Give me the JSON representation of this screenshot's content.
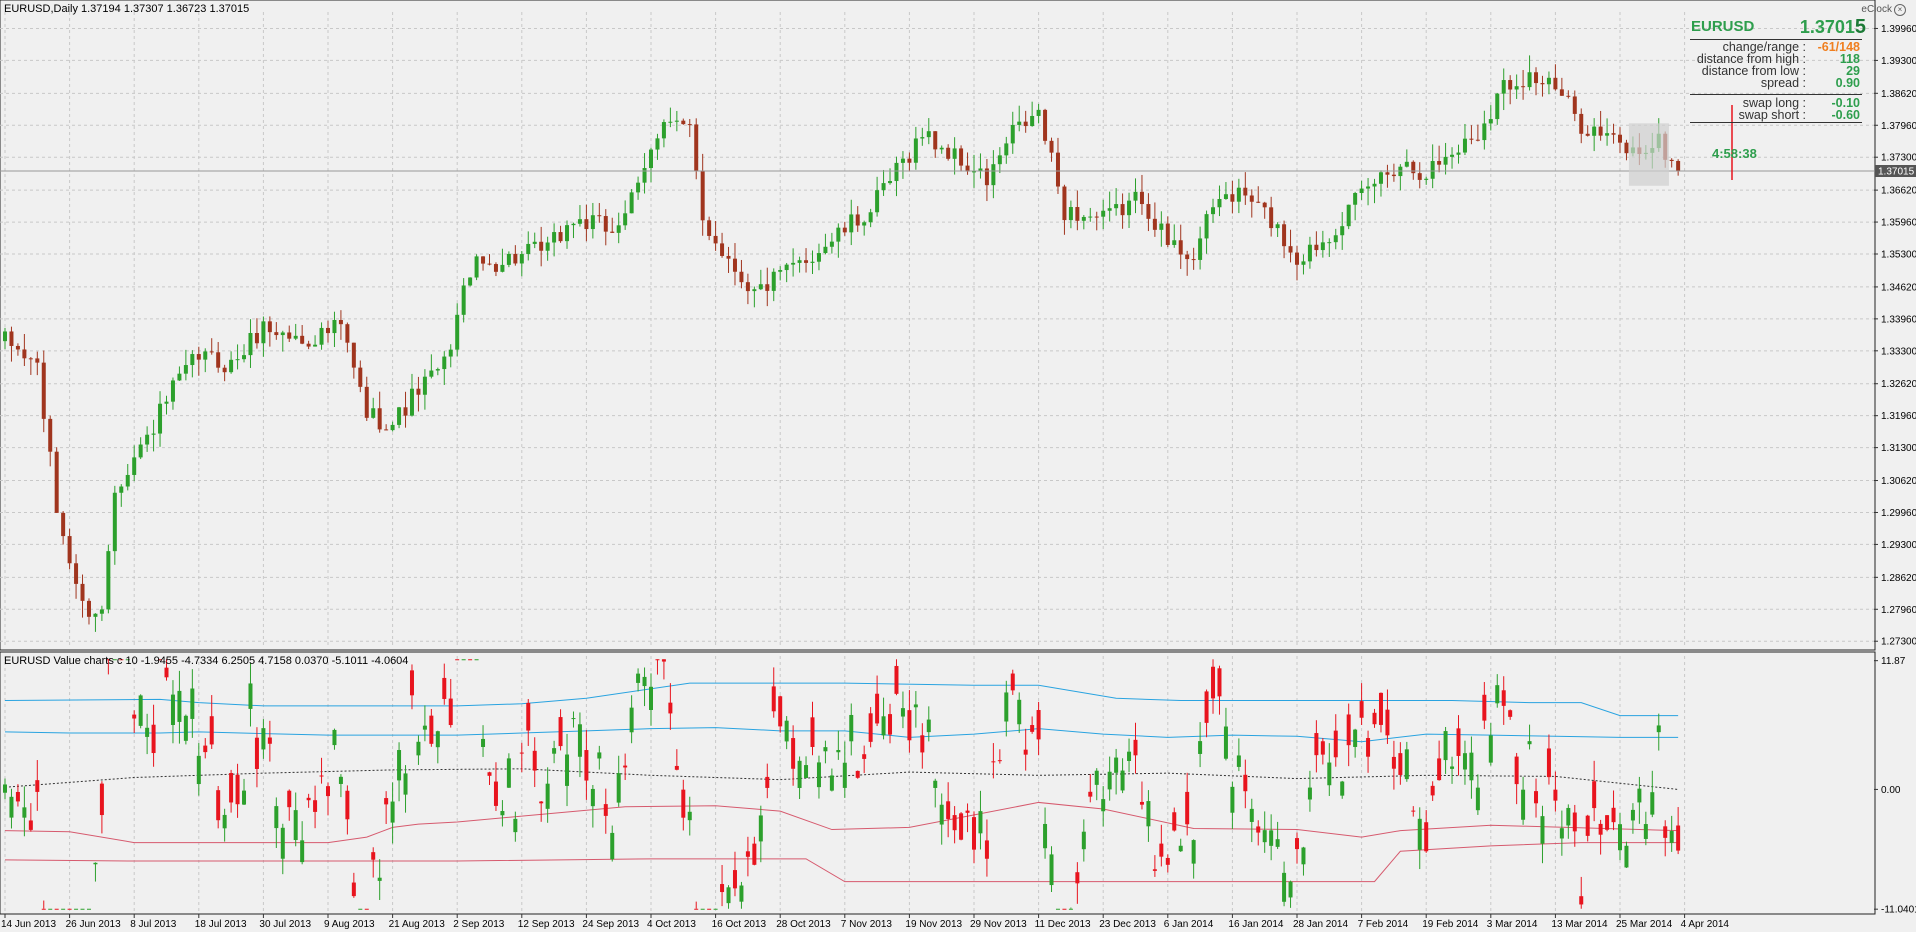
{
  "window": {
    "price_title": "EURUSD,Daily  1.37194 1.37307 1.36723 1.37015",
    "indicator_title": "EURUSD Value charts c 10 -1.9455 -4.7334 6.2505 4.7158 0.0370 -5.1011 -4.0604"
  },
  "eclock": {
    "label": "eClock",
    "close_icon": "close-circle-icon"
  },
  "info_panel": {
    "symbol": "EURUSD",
    "price_main": "1.3701",
    "price_last_digit": "5",
    "rows": [
      {
        "key": "change/range :",
        "value": "-61/148",
        "color": "#f07f1f"
      },
      {
        "key": "distance from high :",
        "value": "118",
        "color": "#2e9e4d"
      },
      {
        "key": "distance from low :",
        "value": "29",
        "color": "#2e9e4d"
      },
      {
        "key": "spread :",
        "value": "0.90",
        "color": "#2e9e4d"
      },
      {
        "key": "swap long :",
        "value": "-0.10",
        "color": "#2e9e4d"
      },
      {
        "key": "swap short :",
        "value": "-0.60",
        "color": "#2e9e4d"
      }
    ],
    "timer": "4:58:38"
  },
  "colors": {
    "bull": "#2ca02c",
    "bear_price": "#a0351e",
    "bear_ind": "#e8141e",
    "band_blue": "#29a3e0",
    "band_red": "#d65a6e",
    "grid": "#c8c8c8",
    "current_price_bg": "#555555"
  },
  "chart_data": [
    {
      "type": "candlestick",
      "title": "EURUSD,Daily",
      "y_ticks": [
        "1.39960",
        "1.39300",
        "1.38620",
        "1.37960",
        "1.37300",
        "1.36620",
        "1.35960",
        "1.35300",
        "1.34620",
        "1.33960",
        "1.33300",
        "1.32620",
        "1.31960",
        "1.31300",
        "1.30620",
        "1.29960",
        "1.29300",
        "1.28620",
        "1.27960",
        "1.27300"
      ],
      "ylim": [
        1.2716,
        1.403
      ],
      "current_price": "1.37015",
      "x_tick_labels": [
        "14 Jun 2013",
        "26 Jun 2013",
        "8 Jul 2013",
        "18 Jul 2013",
        "30 Jul 2013",
        "9 Aug 2013",
        "21 Aug 2013",
        "2 Sep 2013",
        "12 Sep 2013",
        "24 Sep 2013",
        "4 Oct 2013",
        "16 Oct 2013",
        "28 Oct 2013",
        "7 Nov 2013",
        "19 Nov 2013",
        "29 Nov 2013",
        "11 Dec 2013",
        "23 Dec 2013",
        "6 Jan 2014",
        "16 Jan 2014",
        "28 Jan 2014",
        "7 Feb 2014",
        "19 Feb 2014",
        "3 Mar 2014",
        "13 Mar 2014",
        "25 Mar 2014",
        "4 Apr 2014"
      ],
      "close_path": [
        [
          0,
          1.335
        ],
        [
          5,
          1.33
        ],
        [
          8,
          1.3
        ],
        [
          12,
          1.28
        ],
        [
          15,
          1.279
        ],
        [
          17,
          1.305
        ],
        [
          22,
          1.315
        ],
        [
          26,
          1.325
        ],
        [
          30,
          1.332
        ],
        [
          35,
          1.33
        ],
        [
          40,
          1.338
        ],
        [
          46,
          1.335
        ],
        [
          52,
          1.338
        ],
        [
          56,
          1.32
        ],
        [
          60,
          1.318
        ],
        [
          64,
          1.325
        ],
        [
          68,
          1.33
        ],
        [
          72,
          1.35
        ],
        [
          78,
          1.352
        ],
        [
          84,
          1.354
        ],
        [
          88,
          1.36
        ],
        [
          94,
          1.358
        ],
        [
          98,
          1.366
        ],
        [
          102,
          1.382
        ],
        [
          106,
          1.378
        ],
        [
          108,
          1.36
        ],
        [
          112,
          1.352
        ],
        [
          116,
          1.345
        ],
        [
          122,
          1.35
        ],
        [
          128,
          1.356
        ],
        [
          134,
          1.362
        ],
        [
          138,
          1.37
        ],
        [
          142,
          1.378
        ],
        [
          148,
          1.372
        ],
        [
          152,
          1.368
        ],
        [
          156,
          1.378
        ],
        [
          160,
          1.382
        ],
        [
          164,
          1.362
        ],
        [
          170,
          1.36
        ],
        [
          176,
          1.365
        ],
        [
          180,
          1.355
        ],
        [
          184,
          1.353
        ],
        [
          188,
          1.365
        ],
        [
          192,
          1.365
        ],
        [
          196,
          1.36
        ],
        [
          200,
          1.352
        ],
        [
          204,
          1.356
        ],
        [
          208,
          1.362
        ],
        [
          212,
          1.368
        ],
        [
          216,
          1.372
        ],
        [
          220,
          1.37
        ],
        [
          224,
          1.374
        ],
        [
          228,
          1.378
        ],
        [
          232,
          1.388
        ],
        [
          236,
          1.39
        ],
        [
          240,
          1.387
        ],
        [
          244,
          1.38
        ],
        [
          248,
          1.377
        ],
        [
          252,
          1.374
        ],
        [
          256,
          1.376
        ],
        [
          259,
          1.37
        ]
      ]
    },
    {
      "type": "candlestick",
      "title": "EURUSD Value charts c 10",
      "y_ticks": [
        "11.87",
        "0.00",
        "-11.0401"
      ],
      "ylim": [
        -11.3,
        12.3
      ]
    }
  ]
}
